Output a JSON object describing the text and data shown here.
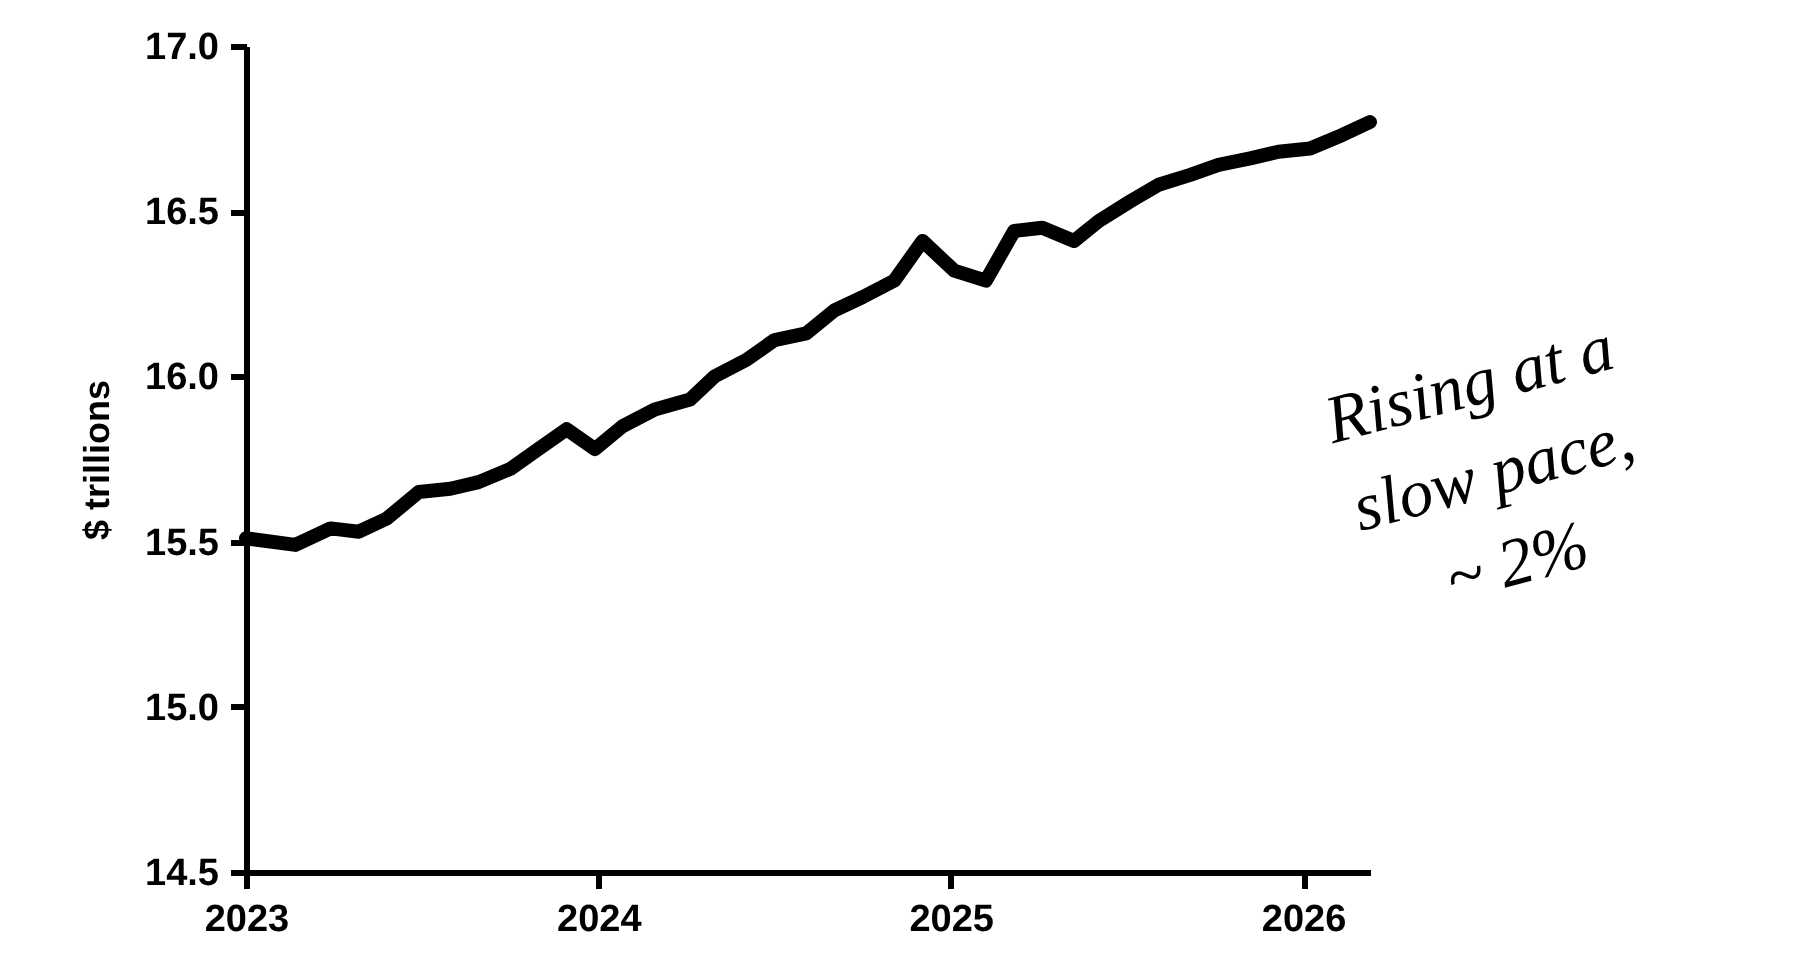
{
  "chart_data": {
    "type": "line",
    "ylabel": "$ trillions",
    "x": [
      2023.0,
      2023.14,
      2023.24,
      2023.32,
      2023.4,
      2023.49,
      2023.58,
      2023.66,
      2023.75,
      2023.83,
      2023.91,
      2023.99,
      2024.07,
      2024.16,
      2024.26,
      2024.33,
      2024.42,
      2024.5,
      2024.59,
      2024.67,
      2024.75,
      2024.84,
      2024.92,
      2025.01,
      2025.1,
      2025.18,
      2025.26,
      2025.35,
      2025.42,
      2025.51,
      2025.59,
      2025.68,
      2025.76,
      2025.85,
      2025.93,
      2026.02,
      2026.11,
      2026.19
    ],
    "series": [
      {
        "color": "#000000",
        "values": [
          15.51,
          15.49,
          15.54,
          15.53,
          15.57,
          15.65,
          15.66,
          15.68,
          15.72,
          15.78,
          15.84,
          15.78,
          15.85,
          15.9,
          15.93,
          16.0,
          16.05,
          16.11,
          16.13,
          16.2,
          16.24,
          16.29,
          16.41,
          16.32,
          16.29,
          16.44,
          16.45,
          16.41,
          16.47,
          16.53,
          16.58,
          16.61,
          16.64,
          16.66,
          16.68,
          16.69,
          16.73,
          16.77
        ]
      }
    ],
    "xlim": [
      2023,
      2026.19
    ],
    "xticks": [
      2023,
      2024,
      2025,
      2026
    ],
    "ylim": [
      14.5,
      17.0
    ],
    "yticks": [
      {
        "value": 14.5,
        "label": "14.5"
      },
      {
        "value": 15.0,
        "label": "15.0"
      },
      {
        "value": 15.5,
        "label": "15.5"
      },
      {
        "value": 16.0,
        "label": "16.0"
      },
      {
        "value": 16.5,
        "label": "16.5"
      },
      {
        "value": 17.0,
        "label": "17.0"
      }
    ],
    "grid": false,
    "line_style": "solid",
    "annotations": [
      "Rising at a slow pace, ~ 2%"
    ]
  }
}
